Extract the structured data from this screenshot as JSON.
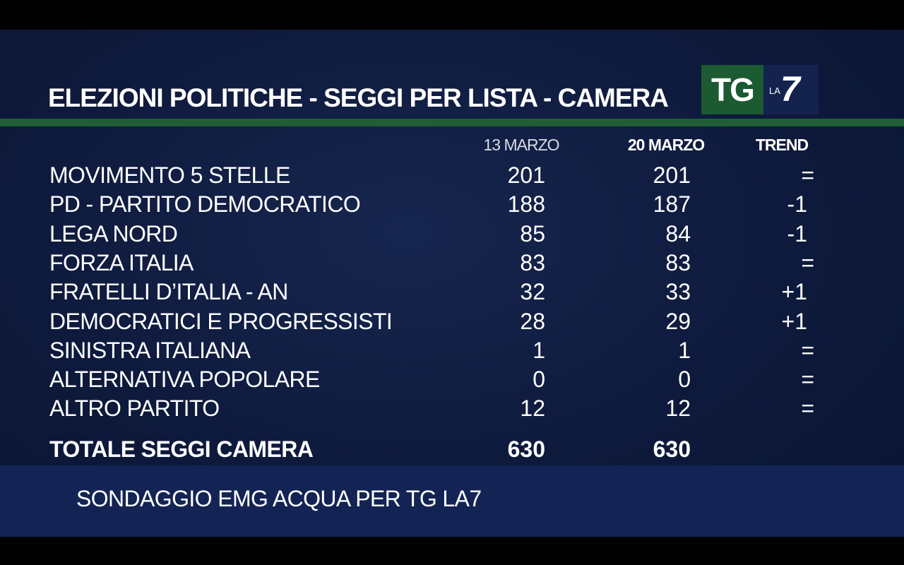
{
  "header": {
    "title": "ELEZIONI POLITICHE - SEGGI  PER  LISTA - CAMERA",
    "logo_tg": "TG",
    "logo_la": "LA",
    "logo_seven": "7"
  },
  "columns": {
    "col1": "13 MARZO",
    "col2": "20 MARZO",
    "col3": "TREND"
  },
  "rows": [
    {
      "party": "MOVIMENTO 5 STELLE",
      "v1": "201",
      "v2": "201",
      "trend": "="
    },
    {
      "party": "PD - PARTITO DEMOCRATICO",
      "v1": "188",
      "v2": "187",
      "trend": "-1"
    },
    {
      "party": "LEGA NORD",
      "v1": "85",
      "v2": "84",
      "trend": "-1"
    },
    {
      "party": "FORZA ITALIA",
      "v1": "83",
      "v2": "83",
      "trend": "="
    },
    {
      "party": "FRATELLI D’ITALIA - AN",
      "v1": "32",
      "v2": "33",
      "trend": "+1"
    },
    {
      "party": "DEMOCRATICI E PROGRESSISTI",
      "v1": "28",
      "v2": "29",
      "trend": "+1"
    },
    {
      "party": "SINISTRA ITALIANA",
      "v1": "1",
      "v2": "1",
      "trend": "="
    },
    {
      "party": "ALTERNATIVA POPOLARE",
      "v1": "0",
      "v2": "0",
      "trend": "="
    },
    {
      "party": "ALTRO PARTITO",
      "v1": "12",
      "v2": "12",
      "trend": "="
    }
  ],
  "total": {
    "label": "TOTALE SEGGI CAMERA",
    "v1": "630",
    "v2": "630"
  },
  "footer": {
    "source": "SONDAGGIO EMG ACQUA PER TG LA7"
  },
  "colors": {
    "background": "#0e1a3c",
    "accent_green": "#1f5e36",
    "footer_bar": "#132454",
    "text": "#ffffff"
  },
  "chart_data": {
    "type": "table",
    "title": "ELEZIONI POLITICHE - SEGGI  PER  LISTA - CAMERA",
    "columns": [
      "13 MARZO",
      "20 MARZO",
      "TREND"
    ],
    "categories": [
      "MOVIMENTO 5 STELLE",
      "PD - PARTITO DEMOCRATICO",
      "LEGA NORD",
      "FORZA ITALIA",
      "FRATELLI D’ITALIA - AN",
      "DEMOCRATICI E PROGRESSISTI",
      "SINISTRA ITALIANA",
      "ALTERNATIVA POPOLARE",
      "ALTRO PARTITO"
    ],
    "series": [
      {
        "name": "13 MARZO",
        "values": [
          201,
          188,
          85,
          83,
          32,
          28,
          1,
          0,
          12
        ]
      },
      {
        "name": "20 MARZO",
        "values": [
          201,
          187,
          84,
          83,
          33,
          29,
          1,
          0,
          12
        ]
      },
      {
        "name": "TREND",
        "values": [
          "=",
          "-1",
          "-1",
          "=",
          "+1",
          "+1",
          "=",
          "=",
          "="
        ]
      }
    ],
    "totals": {
      "label": "TOTALE SEGGI CAMERA",
      "values": [
        630,
        630
      ]
    }
  }
}
